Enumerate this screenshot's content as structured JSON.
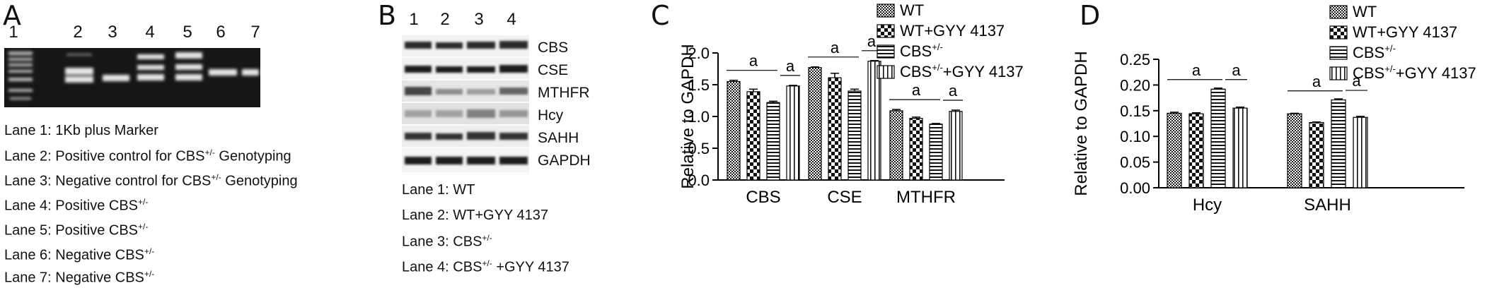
{
  "panel_a": {
    "label": "A",
    "lane_numbers": [
      "1",
      "2",
      "3",
      "4",
      "5",
      "6",
      "7"
    ],
    "legend": [
      {
        "text": "Lane 1: 1Kb plus Marker",
        "sup": ""
      },
      {
        "text": "Lane 2: Positive control for CBS",
        "sup": "+/-",
        "after": " Genotyping"
      },
      {
        "text": "Lane 3: Negative control for CBS",
        "sup": "+/-",
        "after": " Genotyping"
      },
      {
        "text": "Lane 4: Positive CBS",
        "sup": "+/-",
        "after": ""
      },
      {
        "text": "Lane 5: Positive CBS",
        "sup": "+/-",
        "after": ""
      },
      {
        "text": "Lane 6: Negative CBS",
        "sup": "+/-",
        "after": ""
      },
      {
        "text": "Lane 7: Negative CBS",
        "sup": "+/-",
        "after": ""
      }
    ]
  },
  "panel_b": {
    "label": "B",
    "lane_numbers": [
      "1",
      "2",
      "3",
      "4"
    ],
    "bands": [
      "CBS",
      "CSE",
      "MTHFR",
      "Hcy",
      "SAHH",
      "GAPDH"
    ],
    "legend": [
      {
        "text": "Lane 1: WT",
        "sup": "",
        "after": ""
      },
      {
        "text": "Lane 2: WT+GYY 4137",
        "sup": "",
        "after": ""
      },
      {
        "text": "Lane 3: CBS",
        "sup": "+/-",
        "after": ""
      },
      {
        "text": "Lane 4: CBS",
        "sup": "+/-",
        "after": " +GYY 4137"
      }
    ]
  },
  "chart_data": [
    {
      "panel": "C",
      "type": "bar",
      "ylabel": "Relative to GAPDH",
      "ylim": [
        0,
        2.0
      ],
      "yticks": [
        "0.0",
        "0.5",
        "1.0",
        "1.5",
        "2.0"
      ],
      "categories": [
        "CBS",
        "CSE",
        "MTHFR"
      ],
      "series": [
        {
          "name": "WT",
          "sup": "",
          "values": [
            1.55,
            1.77,
            1.09
          ],
          "errors": [
            0.02,
            0.01,
            0.02
          ]
        },
        {
          "name": "WT+GYY 4137",
          "sup": "",
          "values": [
            1.39,
            1.61,
            0.97
          ],
          "errors": [
            0.04,
            0.07,
            0.02
          ]
        },
        {
          "name": "CBS",
          "sup": "+/-",
          "values": [
            1.22,
            1.4,
            0.88
          ],
          "errors": [
            0.02,
            0.03,
            0.01
          ]
        },
        {
          "name": "CBS",
          "sup": "+/-",
          "suffix": "+GYY 4137",
          "values": [
            1.48,
            1.87,
            1.08
          ],
          "errors": [
            0.01,
            0.01,
            0.02
          ]
        }
      ],
      "annotation": "a",
      "legend_position": "top-right"
    },
    {
      "panel": "D",
      "type": "bar",
      "ylabel": "Relative to GAPDH",
      "ylim": [
        0,
        0.25
      ],
      "yticks": [
        "0.00",
        "0.05",
        "0.10",
        "0.15",
        "0.20",
        "0.25"
      ],
      "categories": [
        "Hcy",
        "SAHH"
      ],
      "series": [
        {
          "name": "WT",
          "sup": "",
          "values": [
            0.145,
            0.144
          ],
          "errors": [
            0.002,
            0.001
          ]
        },
        {
          "name": "WT+GYY 4137",
          "sup": "",
          "values": [
            0.144,
            0.127
          ],
          "errors": [
            0.002,
            0.001
          ]
        },
        {
          "name": "CBS",
          "sup": "+/-",
          "values": [
            0.192,
            0.171
          ],
          "errors": [
            0.002,
            0.002
          ]
        },
        {
          "name": "CBS",
          "sup": "+/-",
          "suffix": "+GYY 4137",
          "values": [
            0.155,
            0.137
          ],
          "errors": [
            0.002,
            0.002
          ]
        }
      ],
      "annotation": "a",
      "legend_position": "top-right"
    }
  ]
}
